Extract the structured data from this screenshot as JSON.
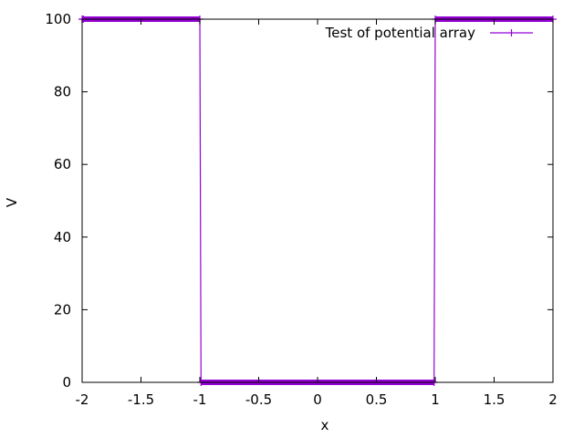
{
  "chart_data": {
    "type": "line",
    "title": "",
    "xlabel": "x",
    "ylabel": "V",
    "xlim": [
      -2,
      2
    ],
    "ylim": [
      0,
      100
    ],
    "xticks": [
      -2,
      -1.5,
      -1,
      -0.5,
      0,
      0.5,
      1,
      1.5,
      2
    ],
    "xtick_labels": [
      "-2",
      "-1.5",
      "-1",
      "-0.5",
      "0",
      "0.5",
      "1",
      "1.5",
      "2"
    ],
    "yticks": [
      0,
      20,
      40,
      60,
      80,
      100
    ],
    "ytick_labels": [
      "0",
      "20",
      "40",
      "60",
      "80",
      "100"
    ],
    "grid": false,
    "legend_position": "top-right",
    "series": [
      {
        "name": "Test of potential array",
        "color": "#9400d3",
        "style": "linespoints",
        "marker": "plus",
        "x": [
          -2,
          -1.99,
          -1,
          -0.99,
          0.99,
          1,
          2
        ],
        "y": [
          100,
          100,
          100,
          0,
          0,
          100,
          100
        ]
      }
    ]
  }
}
